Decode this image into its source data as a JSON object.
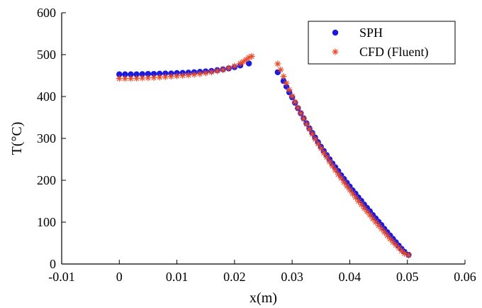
{
  "chart_data": {
    "type": "scatter",
    "title": "",
    "xlabel": "x(m)",
    "ylabel": "T(°C)",
    "xlim": [
      -0.01,
      0.06
    ],
    "ylim": [
      0,
      600
    ],
    "x_ticks": [
      -0.01,
      0,
      0.01,
      0.02,
      0.03,
      0.04,
      0.05,
      0.06
    ],
    "x_tick_labels": [
      "-0.01",
      "0",
      "0.01",
      "0.02",
      "0.03",
      "0.04",
      "0.05",
      "0.06"
    ],
    "y_ticks": [
      0,
      100,
      200,
      300,
      400,
      500,
      600
    ],
    "y_tick_labels": [
      "0",
      "100",
      "200",
      "300",
      "400",
      "500",
      "600"
    ],
    "grid": false,
    "legend_position": "top-right",
    "series": [
      {
        "name": "SPH",
        "marker": "filled-circle",
        "color": "#1a1adf",
        "points": [
          [
            0.0,
            453
          ],
          [
            0.001,
            453
          ],
          [
            0.002,
            453
          ],
          [
            0.003,
            453
          ],
          [
            0.004,
            453.5
          ],
          [
            0.005,
            454
          ],
          [
            0.006,
            454
          ],
          [
            0.007,
            454.5
          ],
          [
            0.008,
            455
          ],
          [
            0.009,
            455
          ],
          [
            0.01,
            456
          ],
          [
            0.011,
            456.5
          ],
          [
            0.012,
            457
          ],
          [
            0.013,
            458
          ],
          [
            0.014,
            459
          ],
          [
            0.015,
            460
          ],
          [
            0.016,
            461
          ],
          [
            0.017,
            463
          ],
          [
            0.018,
            465
          ],
          [
            0.019,
            467
          ],
          [
            0.02,
            470
          ],
          [
            0.021,
            474
          ],
          [
            0.0225,
            479
          ],
          [
            0.0275,
            458
          ],
          [
            0.0285,
            437
          ],
          [
            0.029,
            424
          ],
          [
            0.0295,
            410
          ],
          [
            0.03,
            398
          ],
          [
            0.0305,
            385
          ],
          [
            0.031,
            372
          ],
          [
            0.0315,
            360
          ],
          [
            0.032,
            348
          ],
          [
            0.0325,
            336
          ],
          [
            0.033,
            324
          ],
          [
            0.0335,
            313
          ],
          [
            0.034,
            302
          ],
          [
            0.0345,
            291
          ],
          [
            0.035,
            280
          ],
          [
            0.0355,
            270
          ],
          [
            0.036,
            260
          ],
          [
            0.0365,
            250
          ],
          [
            0.037,
            240
          ],
          [
            0.0375,
            231
          ],
          [
            0.038,
            222
          ],
          [
            0.0385,
            212
          ],
          [
            0.039,
            203
          ],
          [
            0.0395,
            194
          ],
          [
            0.04,
            185
          ],
          [
            0.0405,
            176
          ],
          [
            0.041,
            168
          ],
          [
            0.0415,
            159
          ],
          [
            0.042,
            151
          ],
          [
            0.0425,
            142
          ],
          [
            0.043,
            134
          ],
          [
            0.0435,
            126
          ],
          [
            0.044,
            117
          ],
          [
            0.0445,
            109
          ],
          [
            0.045,
            101
          ],
          [
            0.0455,
            93
          ],
          [
            0.046,
            84
          ],
          [
            0.0465,
            76
          ],
          [
            0.047,
            68
          ],
          [
            0.0475,
            60
          ],
          [
            0.048,
            52
          ],
          [
            0.0485,
            44
          ],
          [
            0.049,
            36
          ],
          [
            0.0495,
            29
          ],
          [
            0.0502,
            22
          ]
        ]
      },
      {
        "name": "CFD (Fluent)",
        "marker": "asterisk",
        "color": "#e84a2a",
        "points": [
          [
            0.0,
            443
          ],
          [
            0.001,
            443
          ],
          [
            0.002,
            443
          ],
          [
            0.003,
            443.5
          ],
          [
            0.004,
            444
          ],
          [
            0.005,
            444.5
          ],
          [
            0.006,
            445
          ],
          [
            0.007,
            446
          ],
          [
            0.008,
            447
          ],
          [
            0.009,
            448
          ],
          [
            0.01,
            449
          ],
          [
            0.011,
            450
          ],
          [
            0.012,
            451
          ],
          [
            0.013,
            452.5
          ],
          [
            0.014,
            454
          ],
          [
            0.015,
            456
          ],
          [
            0.016,
            458
          ],
          [
            0.017,
            461
          ],
          [
            0.018,
            464
          ],
          [
            0.019,
            468
          ],
          [
            0.02,
            473
          ],
          [
            0.021,
            479
          ],
          [
            0.0215,
            483
          ],
          [
            0.022,
            488
          ],
          [
            0.0225,
            493
          ],
          [
            0.023,
            496
          ],
          [
            0.0275,
            478
          ],
          [
            0.028,
            464
          ],
          [
            0.0285,
            448
          ],
          [
            0.029,
            432
          ],
          [
            0.0295,
            416
          ],
          [
            0.03,
            401
          ],
          [
            0.0305,
            387
          ],
          [
            0.031,
            373
          ],
          [
            0.0315,
            360
          ],
          [
            0.032,
            347
          ],
          [
            0.0325,
            334
          ],
          [
            0.033,
            322
          ],
          [
            0.0335,
            310
          ],
          [
            0.034,
            298
          ],
          [
            0.0345,
            287
          ],
          [
            0.035,
            276
          ],
          [
            0.0355,
            265
          ],
          [
            0.036,
            255
          ],
          [
            0.0365,
            244
          ],
          [
            0.037,
            234
          ],
          [
            0.0375,
            224
          ],
          [
            0.038,
            214
          ],
          [
            0.0385,
            205
          ],
          [
            0.039,
            195
          ],
          [
            0.0395,
            186
          ],
          [
            0.04,
            177
          ],
          [
            0.0405,
            168
          ],
          [
            0.041,
            159
          ],
          [
            0.0415,
            150
          ],
          [
            0.042,
            142
          ],
          [
            0.0425,
            133
          ],
          [
            0.043,
            125
          ],
          [
            0.0435,
            117
          ],
          [
            0.044,
            108
          ],
          [
            0.0445,
            100
          ],
          [
            0.045,
            92
          ],
          [
            0.0455,
            84
          ],
          [
            0.046,
            76
          ],
          [
            0.0465,
            68
          ],
          [
            0.047,
            60
          ],
          [
            0.0475,
            52
          ],
          [
            0.048,
            45
          ],
          [
            0.0485,
            38
          ],
          [
            0.049,
            31
          ],
          [
            0.0495,
            25
          ],
          [
            0.0502,
            21
          ]
        ]
      }
    ]
  }
}
